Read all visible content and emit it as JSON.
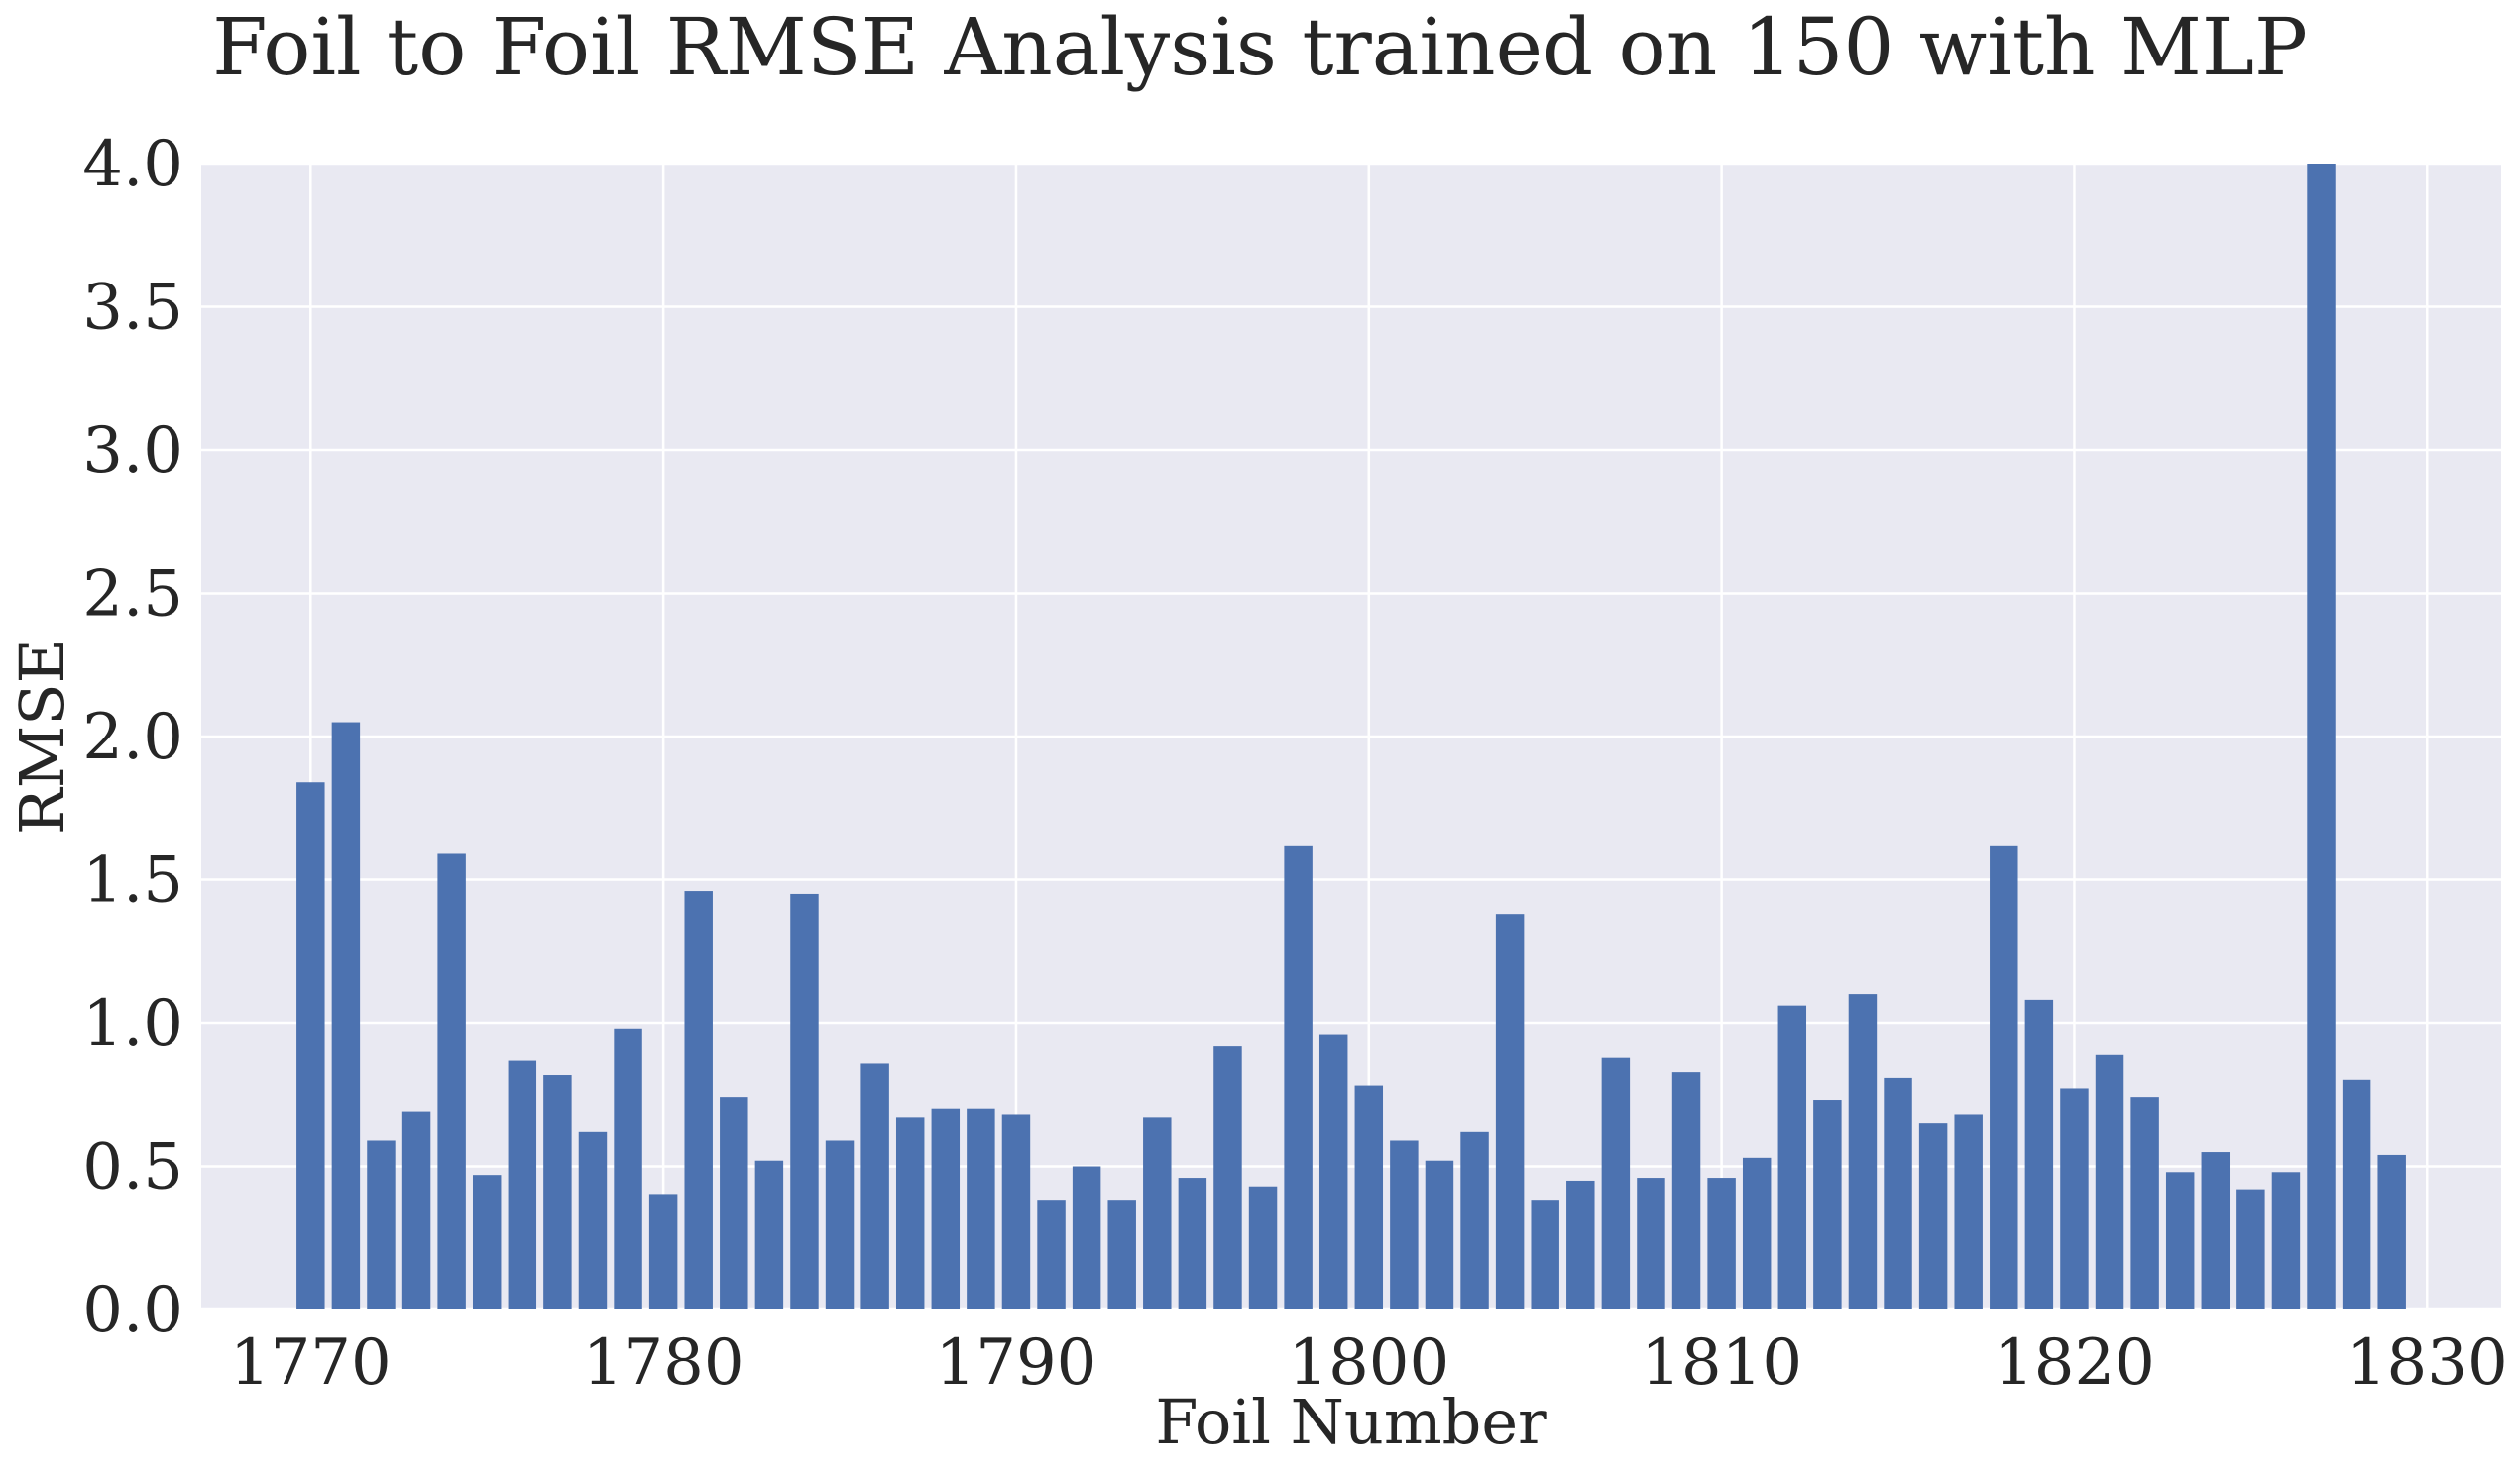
{
  "chart_data": {
    "type": "bar",
    "title": "Foil to Foil RMSE Analysis  trained on 150 with MLP",
    "xlabel": "Foil Number",
    "ylabel": "RMSE",
    "xlim": [
      1766.9,
      1832.1
    ],
    "ylim": [
      0.0,
      4.0
    ],
    "xticks": [
      1770,
      1780,
      1790,
      1800,
      1810,
      1820,
      1830
    ],
    "yticks": [
      0.0,
      0.5,
      1.0,
      1.5,
      2.0,
      2.5,
      3.0,
      3.5,
      4.0
    ],
    "xtick_labels": [
      "1770",
      "1780",
      "1790",
      "1800",
      "1810",
      "1820",
      "1830"
    ],
    "ytick_labels": [
      "0.0",
      "0.5",
      "1.0",
      "1.5",
      "2.0",
      "2.5",
      "3.0",
      "3.5",
      "4.0"
    ],
    "grid": true,
    "bar_color": "#4c72b0",
    "background_color": "#e9e9f2",
    "x": [
      1770,
      1771,
      1772,
      1773,
      1774,
      1775,
      1776,
      1777,
      1778,
      1779,
      1780,
      1781,
      1782,
      1783,
      1784,
      1785,
      1786,
      1787,
      1788,
      1789,
      1790,
      1791,
      1792,
      1793,
      1794,
      1795,
      1796,
      1797,
      1798,
      1799,
      1800,
      1801,
      1802,
      1803,
      1804,
      1805,
      1806,
      1807,
      1808,
      1809,
      1810,
      1811,
      1812,
      1813,
      1814,
      1815,
      1816,
      1817,
      1818,
      1819,
      1820,
      1821,
      1822,
      1823,
      1824,
      1825,
      1826,
      1827,
      1828,
      1829
    ],
    "values": [
      1.84,
      2.05,
      0.59,
      0.69,
      1.59,
      0.47,
      0.87,
      0.82,
      0.62,
      0.98,
      0.4,
      1.46,
      0.74,
      0.52,
      1.45,
      0.59,
      0.86,
      0.67,
      0.7,
      0.7,
      0.68,
      0.38,
      0.5,
      0.38,
      0.67,
      0.46,
      0.92,
      0.43,
      1.62,
      0.96,
      0.78,
      0.59,
      0.52,
      0.62,
      1.38,
      0.38,
      0.45,
      0.88,
      0.46,
      0.83,
      0.46,
      0.53,
      1.06,
      0.73,
      1.1,
      0.81,
      0.65,
      0.68,
      1.62,
      1.08,
      0.77,
      0.89,
      0.74,
      0.48,
      0.55,
      0.42,
      0.48,
      4.0,
      0.8,
      0.54
    ]
  }
}
